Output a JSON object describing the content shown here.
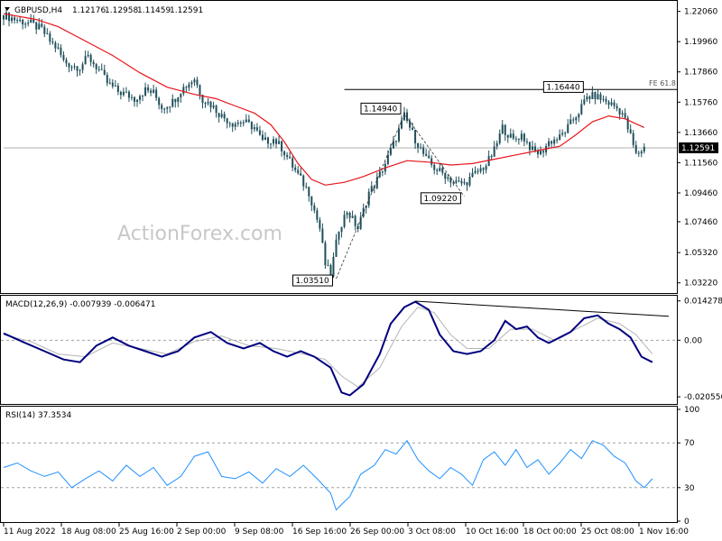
{
  "header": {
    "symbol": "GBPUSD,H4",
    "open": "1.12176",
    "high": "1.12958",
    "low": "1.11459",
    "close": "1.12591"
  },
  "watermark": "ActionForex.com",
  "colors": {
    "candle": "#1f4f5a",
    "ma": "#e8141b",
    "macd": "#000080",
    "signal": "#b4b4b4",
    "rsi": "#1e90ff",
    "grid_dashed": "#a0a0a0",
    "annotation_line": "#000000"
  },
  "chart_data": [
    {
      "type": "candlestick",
      "title": "GBPUSD,H4",
      "ylim": [
        1.027,
        1.226
      ],
      "y_ticks": [
        "1.22060",
        "1.19960",
        "1.17860",
        "1.15760",
        "1.13660",
        "1.11560",
        "1.09460",
        "1.07460",
        "1.05320",
        "1.03220"
      ],
      "x_ticks": [
        "11 Aug 2022",
        "18 Aug 08:00",
        "25 Aug 16:00",
        "2 Sep 00:00",
        "9 Sep 08:00",
        "16 Sep 16:00",
        "26 Sep 00:00",
        "3 Oct 08:00",
        "10 Oct 16:00",
        "18 Oct 00:00",
        "25 Oct 08:00",
        "1 Nov 16:00"
      ],
      "last_price": "1.12591",
      "close_path": [
        [
          0,
          1.218
        ],
        [
          6,
          1.214
        ],
        [
          10,
          1.212
        ],
        [
          14,
          1.208
        ],
        [
          17,
          1.2
        ],
        [
          20,
          1.194
        ],
        [
          22,
          1.186
        ],
        [
          25,
          1.183
        ],
        [
          28,
          1.182
        ],
        [
          31,
          1.189
        ],
        [
          35,
          1.18
        ],
        [
          38,
          1.171
        ],
        [
          42,
          1.165
        ],
        [
          45,
          1.163
        ],
        [
          48,
          1.16
        ],
        [
          52,
          1.166
        ],
        [
          55,
          1.164
        ],
        [
          58,
          1.154
        ],
        [
          62,
          1.158
        ],
        [
          65,
          1.166
        ],
        [
          70,
          1.174
        ],
        [
          73,
          1.16
        ],
        [
          76,
          1.156
        ],
        [
          80,
          1.148
        ],
        [
          84,
          1.143
        ],
        [
          88,
          1.144
        ],
        [
          92,
          1.14
        ],
        [
          95,
          1.13
        ],
        [
          99,
          1.132
        ],
        [
          102,
          1.126
        ],
        [
          107,
          1.11
        ],
        [
          112,
          1.095
        ],
        [
          116,
          1.07
        ],
        [
          118,
          1.045
        ],
        [
          120,
          1.038
        ],
        [
          123,
          1.07
        ],
        [
          126,
          1.082
        ],
        [
          130,
          1.07
        ],
        [
          134,
          1.095
        ],
        [
          136,
          1.1
        ],
        [
          140,
          1.115
        ],
        [
          144,
          1.133
        ],
        [
          147,
          1.148
        ],
        [
          151,
          1.132
        ],
        [
          155,
          1.118
        ],
        [
          158,
          1.112
        ],
        [
          162,
          1.107
        ],
        [
          165,
          1.102
        ],
        [
          169,
          1.101
        ],
        [
          173,
          1.108
        ],
        [
          177,
          1.114
        ],
        [
          180,
          1.124
        ],
        [
          183,
          1.14
        ],
        [
          187,
          1.131
        ],
        [
          190,
          1.135
        ],
        [
          194,
          1.124
        ],
        [
          197,
          1.122
        ],
        [
          200,
          1.13
        ],
        [
          204,
          1.133
        ],
        [
          207,
          1.14
        ],
        [
          211,
          1.151
        ],
        [
          214,
          1.161
        ],
        [
          217,
          1.162
        ],
        [
          221,
          1.158
        ],
        [
          224,
          1.155
        ],
        [
          227,
          1.15
        ],
        [
          230,
          1.134
        ],
        [
          232,
          1.121
        ],
        [
          235,
          1.126
        ]
      ],
      "series": [
        {
          "name": "",
          "color": "#e8141b",
          "values": [
            [
              0,
              1.219
            ],
            [
              12,
              1.215
            ],
            [
              20,
              1.21
            ],
            [
              30,
              1.2
            ],
            [
              40,
              1.19
            ],
            [
              50,
              1.178
            ],
            [
              60,
              1.168
            ],
            [
              70,
              1.163
            ],
            [
              78,
              1.16
            ],
            [
              85,
              1.155
            ],
            [
              92,
              1.15
            ],
            [
              98,
              1.142
            ],
            [
              103,
              1.13
            ],
            [
              108,
              1.115
            ],
            [
              113,
              1.104
            ],
            [
              118,
              1.1
            ],
            [
              125,
              1.102
            ],
            [
              132,
              1.106
            ],
            [
              140,
              1.112
            ],
            [
              148,
              1.117
            ],
            [
              156,
              1.116
            ],
            [
              164,
              1.114
            ],
            [
              172,
              1.115
            ],
            [
              180,
              1.118
            ],
            [
              188,
              1.121
            ],
            [
              196,
              1.124
            ],
            [
              204,
              1.127
            ],
            [
              210,
              1.135
            ],
            [
              216,
              1.144
            ],
            [
              222,
              1.148
            ],
            [
              228,
              1.146
            ],
            [
              235,
              1.14
            ]
          ]
        }
      ],
      "horizontal_levels": [
        {
          "label": "FE 61.8",
          "value": 1.1664,
          "from": 125
        },
        {
          "label": "",
          "value": 1.12591,
          "from": 0
        }
      ],
      "annotations": [
        {
          "label": "1.03510",
          "x": 122,
          "value": 1.0351
        },
        {
          "label": "1.14940",
          "x": 147,
          "value": 1.1494
        },
        {
          "label": "1.09220",
          "x": 169,
          "value": 1.0922
        },
        {
          "label": "1.16440",
          "x": 214,
          "value": 1.1644
        }
      ],
      "wave_dashed": [
        [
          122,
          1.0351
        ],
        [
          147,
          1.1494
        ],
        [
          169,
          1.0922
        ]
      ]
    },
    {
      "type": "line",
      "title": "MACD(12,26,9) -0.007939 -0.006471",
      "ylim": [
        -0.0225,
        0.0155
      ],
      "y_ticks": [
        "0.014278",
        "0.00",
        "-0.020556"
      ],
      "series": [
        {
          "name": "MACD(12,26,9)",
          "color": "#000080",
          "values": [
            [
              0,
              0.0025
            ],
            [
              8,
              -0.001
            ],
            [
              15,
              -0.004
            ],
            [
              22,
              -0.007
            ],
            [
              28,
              -0.008
            ],
            [
              34,
              -0.002
            ],
            [
              40,
              0.001
            ],
            [
              46,
              -0.002
            ],
            [
              52,
              -0.004
            ],
            [
              58,
              -0.006
            ],
            [
              64,
              -0.004
            ],
            [
              70,
              0.001
            ],
            [
              76,
              0.003
            ],
            [
              82,
              -0.001
            ],
            [
              88,
              -0.003
            ],
            [
              94,
              -0.001
            ],
            [
              99,
              -0.004
            ],
            [
              104,
              -0.006
            ],
            [
              109,
              -0.004
            ],
            [
              114,
              -0.006
            ],
            [
              120,
              -0.01
            ],
            [
              124,
              -0.019
            ],
            [
              127,
              -0.02
            ],
            [
              132,
              -0.016
            ],
            [
              138,
              -0.005
            ],
            [
              142,
              0.006
            ],
            [
              147,
              0.012
            ],
            [
              151,
              0.014
            ],
            [
              156,
              0.011
            ],
            [
              160,
              0.002
            ],
            [
              165,
              -0.004
            ],
            [
              170,
              -0.005
            ],
            [
              175,
              -0.004
            ],
            [
              180,
              0.0
            ],
            [
              184,
              0.007
            ],
            [
              188,
              0.004
            ],
            [
              192,
              0.005
            ],
            [
              196,
              0.001
            ],
            [
              200,
              -0.001
            ],
            [
              204,
              0.001
            ],
            [
              208,
              0.003
            ],
            [
              213,
              0.008
            ],
            [
              218,
              0.009
            ],
            [
              222,
              0.006
            ],
            [
              226,
              0.004
            ],
            [
              230,
              0.001
            ],
            [
              234,
              -0.006
            ],
            [
              238,
              -0.008
            ]
          ]
        },
        {
          "name": "signal",
          "color": "#b4b4b4",
          "values": [
            [
              0,
              0.002
            ],
            [
              10,
              -0.0005
            ],
            [
              20,
              -0.005
            ],
            [
              30,
              -0.006
            ],
            [
              40,
              -0.001
            ],
            [
              50,
              -0.003
            ],
            [
              60,
              -0.005
            ],
            [
              70,
              -0.0005
            ],
            [
              80,
              0.0015
            ],
            [
              90,
              -0.002
            ],
            [
              100,
              -0.003
            ],
            [
              110,
              -0.005
            ],
            [
              118,
              -0.007
            ],
            [
              124,
              -0.013
            ],
            [
              130,
              -0.017
            ],
            [
              138,
              -0.01
            ],
            [
              146,
              0.005
            ],
            [
              152,
              0.012
            ],
            [
              158,
              0.01
            ],
            [
              164,
              0.002
            ],
            [
              170,
              -0.003
            ],
            [
              178,
              -0.003
            ],
            [
              186,
              0.004
            ],
            [
              194,
              0.004
            ],
            [
              202,
              0.0
            ],
            [
              210,
              0.004
            ],
            [
              218,
              0.008
            ],
            [
              226,
              0.006
            ],
            [
              232,
              0.002
            ],
            [
              238,
              -0.005
            ]
          ]
        }
      ],
      "divergence_line": [
        [
          151,
          0.0142
        ],
        [
          244,
          0.0087
        ]
      ]
    },
    {
      "type": "line",
      "title": "RSI(14) 37.3534",
      "ylim": [
        0,
        100
      ],
      "y_ticks": [
        "100",
        "70",
        "30",
        "0"
      ],
      "series": [
        {
          "name": "RSI(14)",
          "color": "#1e90ff",
          "values": [
            [
              0,
              48
            ],
            [
              5,
              52
            ],
            [
              10,
              45
            ],
            [
              15,
              40
            ],
            [
              20,
              44
            ],
            [
              25,
              30
            ],
            [
              30,
              38
            ],
            [
              35,
              45
            ],
            [
              40,
              36
            ],
            [
              45,
              50
            ],
            [
              50,
              40
            ],
            [
              55,
              48
            ],
            [
              60,
              32
            ],
            [
              65,
              40
            ],
            [
              70,
              58
            ],
            [
              75,
              62
            ],
            [
              80,
              40
            ],
            [
              85,
              38
            ],
            [
              90,
              44
            ],
            [
              95,
              34
            ],
            [
              100,
              47
            ],
            [
              105,
              40
            ],
            [
              110,
              50
            ],
            [
              115,
              38
            ],
            [
              120,
              25
            ],
            [
              122,
              10
            ],
            [
              124,
              15
            ],
            [
              127,
              22
            ],
            [
              131,
              42
            ],
            [
              136,
              50
            ],
            [
              140,
              64
            ],
            [
              144,
              60
            ],
            [
              148,
              72
            ],
            [
              152,
              55
            ],
            [
              156,
              45
            ],
            [
              160,
              38
            ],
            [
              164,
              48
            ],
            [
              168,
              42
            ],
            [
              172,
              32
            ],
            [
              176,
              55
            ],
            [
              180,
              62
            ],
            [
              184,
              50
            ],
            [
              188,
              64
            ],
            [
              192,
              48
            ],
            [
              196,
              55
            ],
            [
              200,
              42
            ],
            [
              204,
              52
            ],
            [
              208,
              64
            ],
            [
              212,
              56
            ],
            [
              216,
              72
            ],
            [
              220,
              68
            ],
            [
              224,
              58
            ],
            [
              228,
              52
            ],
            [
              232,
              36
            ],
            [
              235,
              30
            ],
            [
              238,
              38
            ]
          ]
        }
      ],
      "levels": [
        70,
        30
      ]
    }
  ]
}
